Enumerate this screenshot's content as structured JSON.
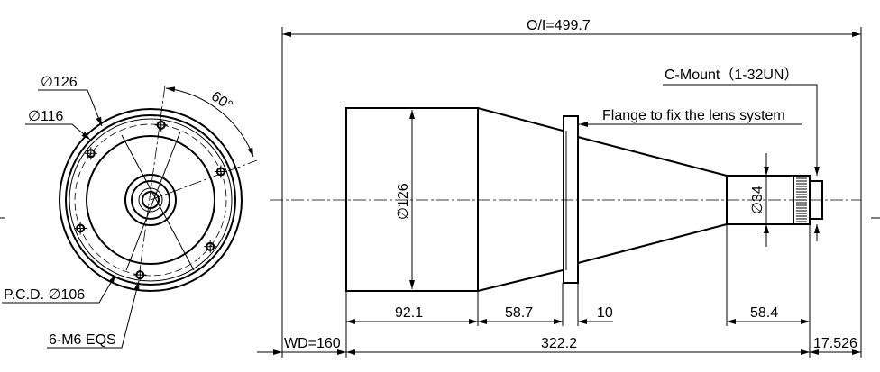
{
  "front_view": {
    "outer_diameter_label": "∅126",
    "inner_diameter_label": "∅116",
    "angle_label": "60°",
    "pcd_label": "P.C.D. ∅106",
    "holes_label": "6-M6 EQS",
    "hole_count": 6
  },
  "side_view": {
    "overall_label": "O/I=499.7",
    "cmount_label": "C-Mount（1-32UN）",
    "flange_label": "Flange to fix the lens system",
    "body_diameter_label": "∅126",
    "barrel_diameter_label": "∅34",
    "dims": {
      "body_length": "92.1",
      "taper_length": "58.7",
      "flange_thickness": "10",
      "barrel_length": "58.4",
      "wd": "WD=160",
      "total_length": "322.2",
      "back_focus": "17.526"
    }
  }
}
